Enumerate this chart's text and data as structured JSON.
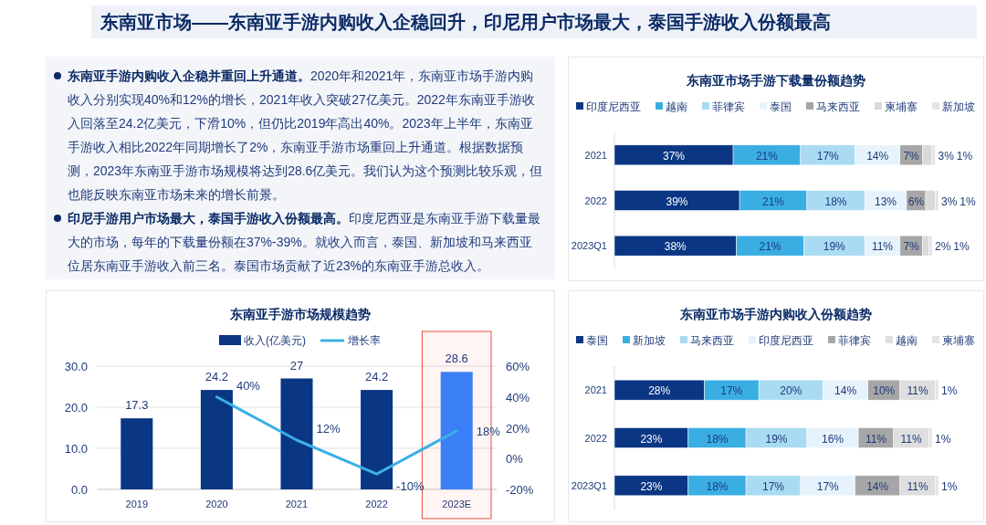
{
  "chart_data": [
    {
      "type": "other",
      "title": "东南亚市场——东南亚手游内购收入企稳回升，印尼用户市场最大，泰国手游收入份额最高",
      "annotations": [
        "东南亚手游内购收入企稳并重回上升通道。",
        "2020年和2021年，东南亚市场手游内购收入分别实现40%和12%的增长，2021年收入突破27亿美元。2022年东南亚手游收入回落至24.2亿美元，下滑10%，但仍比2019年高出40%。2023年上半年，东南亚手游收入相比2022年同期增长了2%，东南亚手游市场重回上升通道。根据数据预测，2023年东南亚手游市场规模将达到28.6亿美元。我们认为这个预测比较乐观，但也能反映东南亚市场未来的增长前景。",
        "印尼手游用户市场最大，泰国手游收入份额最高。",
        "印度尼西亚是东南亚手游下载量最大的市场，每年的下载量份额在37%-39%。就收入而言，泰国、新加坡和马来西亚位居东南亚手游收入前三名。泰国市场贡献了近23%的东南亚手游总收入。"
      ]
    },
    {
      "type": "bar",
      "title": "东南亚手游市场规模趋势",
      "categories": [
        "2019",
        "2020",
        "2021",
        "2022",
        "2023E"
      ],
      "series": [
        {
          "name": "收入(亿美元)",
          "type": "bar",
          "color": "#0a3683",
          "colors": [
            "#0a3683",
            "#0a3683",
            "#0a3683",
            "#0a3683",
            "#3a7ff6"
          ],
          "values": [
            17.3,
            24.2,
            27,
            24.2,
            28.6
          ],
          "value_labels": [
            "17.3",
            "24.2",
            "27",
            "24.2",
            "28.6"
          ]
        },
        {
          "name": "增长率",
          "type": "line",
          "axis": "y2",
          "color": "#3ab0e6",
          "values": [
            null,
            40,
            12,
            -10,
            18
          ],
          "value_labels": [
            null,
            "40%",
            "12%",
            "-10%",
            "18%"
          ]
        }
      ],
      "ylim": [
        0,
        30
      ],
      "yticks": [
        {
          "value": 0,
          "label": "0.0"
        },
        {
          "value": 10,
          "label": "10.0"
        },
        {
          "value": 20,
          "label": "20.0"
        },
        {
          "value": 30,
          "label": "30.0"
        }
      ],
      "y2lim": [
        -20,
        60
      ],
      "y2ticks": [
        {
          "value": -20,
          "label": "-20%"
        },
        {
          "value": 0,
          "label": "0%"
        },
        {
          "value": 20,
          "label": "20%"
        },
        {
          "value": 40,
          "label": "40%"
        },
        {
          "value": 60,
          "label": "60%"
        }
      ],
      "bands": [
        {
          "axis": "x",
          "from": "2023E",
          "to": "2023E",
          "color": "#e8503f"
        }
      ],
      "grid": "y",
      "legend": "top",
      "marker": "none"
    },
    {
      "type": "bar",
      "orientation": "horizontal",
      "stacked": true,
      "title": "东南亚市场手游下载量份额趋势",
      "categories": [
        "2021",
        "2022",
        "2023Q1"
      ],
      "series": [
        {
          "name": "印度尼西亚",
          "color": "#0a3683",
          "values": [
            37,
            39,
            38
          ],
          "value_labels": [
            "37%",
            "39%",
            "38%"
          ]
        },
        {
          "name": "越南",
          "color": "#3aaee3",
          "values": [
            21,
            21,
            21
          ],
          "value_labels": [
            "21%",
            "21%",
            "21%"
          ]
        },
        {
          "name": "菲律宾",
          "color": "#a9dbf3",
          "values": [
            17,
            18,
            19
          ],
          "value_labels": [
            "17%",
            "18%",
            "19%"
          ]
        },
        {
          "name": "泰国",
          "color": "#e6f3fc",
          "values": [
            14,
            13,
            11
          ],
          "value_labels": [
            "14%",
            "13%",
            "11%"
          ]
        },
        {
          "name": "马来西亚",
          "color": "#a6a6a6",
          "values": [
            7,
            6,
            7
          ],
          "value_labels": [
            "7%",
            "6%",
            "7%"
          ]
        },
        {
          "name": "柬埔寨",
          "color": "#d9d9d9",
          "values": [
            3,
            3,
            2
          ],
          "value_labels": [
            "3%",
            "3%",
            "2%"
          ]
        },
        {
          "name": "新加坡",
          "color": "#e4e4e4",
          "values": [
            1,
            1,
            1
          ],
          "value_labels": [
            "1%",
            "1%",
            "1%"
          ]
        }
      ],
      "legend": "top",
      "grid": false
    },
    {
      "type": "bar",
      "orientation": "horizontal",
      "stacked": true,
      "title": "东南亚市场手游内购收入份额趋势",
      "categories": [
        "2021",
        "2022",
        "2023Q1"
      ],
      "series": [
        {
          "name": "泰国",
          "color": "#0a3683",
          "values": [
            28,
            23,
            23
          ],
          "value_labels": [
            "28%",
            "23%",
            "23%"
          ]
        },
        {
          "name": "新加坡",
          "color": "#3aaee3",
          "values": [
            17,
            18,
            18
          ],
          "value_labels": [
            "17%",
            "18%",
            "18%"
          ]
        },
        {
          "name": "马来西亚",
          "color": "#a9dbf3",
          "values": [
            20,
            19,
            17
          ],
          "value_labels": [
            "20%",
            "19%",
            "17%"
          ]
        },
        {
          "name": "印度尼西亚",
          "color": "#e6f3fc",
          "values": [
            14,
            16,
            17
          ],
          "value_labels": [
            "14%",
            "16%",
            "17%"
          ]
        },
        {
          "name": "菲律宾",
          "color": "#a6a6a6",
          "values": [
            10,
            11,
            14
          ],
          "value_labels": [
            "10%",
            "11%",
            "14%"
          ]
        },
        {
          "name": "越南",
          "color": "#dedede",
          "values": [
            11,
            11,
            11
          ],
          "value_labels": [
            "11%",
            "11%",
            "11%"
          ]
        },
        {
          "name": "柬埔寨",
          "color": "#e4e4e4",
          "values": [
            1,
            1,
            1
          ],
          "value_labels": [
            "1%",
            "1%",
            "1%"
          ]
        }
      ],
      "legend": "top",
      "grid": false
    }
  ]
}
